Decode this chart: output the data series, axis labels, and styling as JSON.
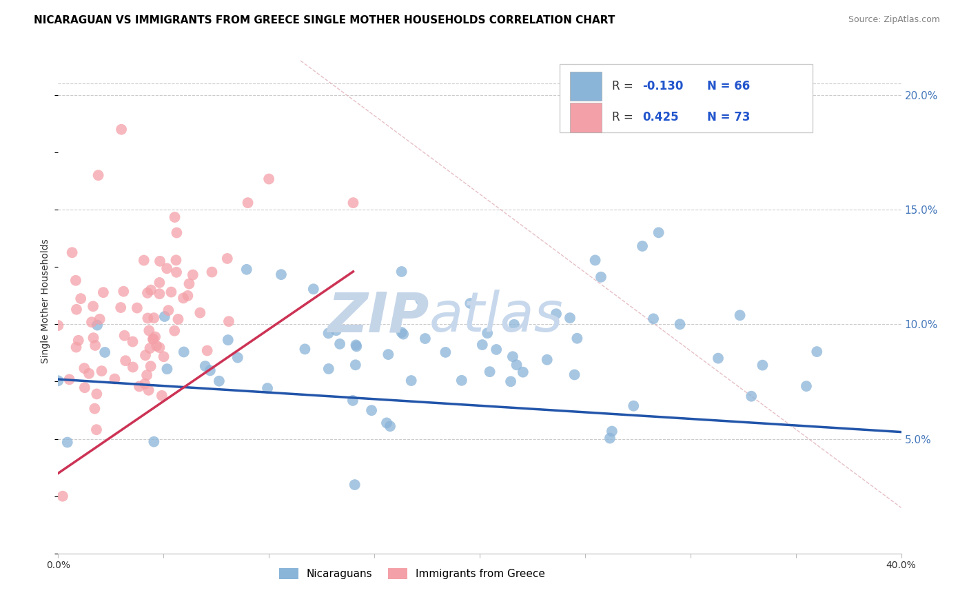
{
  "title": "NICARAGUAN VS IMMIGRANTS FROM GREECE SINGLE MOTHER HOUSEHOLDS CORRELATION CHART",
  "source": "Source: ZipAtlas.com",
  "ylabel": "Single Mother Households",
  "xlim": [
    0,
    0.4
  ],
  "ylim": [
    0,
    0.22
  ],
  "xticks": [
    0.0,
    0.05,
    0.1,
    0.15,
    0.2,
    0.25,
    0.3,
    0.35,
    0.4
  ],
  "yticks_right": [
    0.05,
    0.1,
    0.15,
    0.2
  ],
  "ytick_labels_right": [
    "5.0%",
    "10.0%",
    "15.0%",
    "20.0%"
  ],
  "blue_color": "#8AB4D8",
  "pink_color": "#F4A0A8",
  "blue_label": "Nicaraguans",
  "pink_label": "Immigrants from Greece",
  "blue_R": -0.13,
  "blue_N": 66,
  "pink_R": 0.425,
  "pink_N": 73,
  "blue_trend_color": "#2255AA",
  "pink_trend_color": "#CC3355",
  "ref_line_color": "#E0B0B8",
  "watermark_zip_color": "#C5D5E8",
  "watermark_atlas_color": "#C8D8EC",
  "background_color": "#FFFFFF",
  "grid_color": "#CCCCCC",
  "title_fontsize": 11,
  "source_fontsize": 9,
  "seed": 42,
  "legend_text_color": "#2255CC",
  "legend_label_color": "#333333"
}
